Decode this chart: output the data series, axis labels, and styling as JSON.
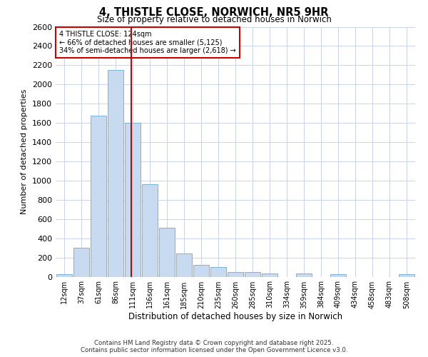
{
  "title": "4, THISTLE CLOSE, NORWICH, NR5 9HR",
  "subtitle": "Size of property relative to detached houses in Norwich",
  "xlabel": "Distribution of detached houses by size in Norwich",
  "ylabel": "Number of detached properties",
  "footer_line1": "Contains HM Land Registry data © Crown copyright and database right 2025.",
  "footer_line2": "Contains public sector information licensed under the Open Government Licence v3.0.",
  "annotation_line1": "4 THISTLE CLOSE: 124sqm",
  "annotation_line2": "← 66% of detached houses are smaller (5,125)",
  "annotation_line3": "34% of semi-detached houses are larger (2,618) →",
  "vline_index": 4.43,
  "categories": [
    "12sqm",
    "37sqm",
    "61sqm",
    "86sqm",
    "111sqm",
    "136sqm",
    "161sqm",
    "185sqm",
    "210sqm",
    "235sqm",
    "260sqm",
    "285sqm",
    "310sqm",
    "334sqm",
    "359sqm",
    "384sqm",
    "409sqm",
    "434sqm",
    "458sqm",
    "483sqm",
    "508sqm"
  ],
  "values": [
    25,
    300,
    1675,
    2150,
    1600,
    960,
    510,
    245,
    120,
    100,
    50,
    50,
    30,
    0,
    30,
    0,
    25,
    0,
    0,
    0,
    25
  ],
  "bar_color": "#c8daf0",
  "bar_edge_color": "#6aaad4",
  "vline_color": "#cc0000",
  "annotation_box_edge_color": "#cc0000",
  "background_color": "#ffffff",
  "grid_color": "#c8d3e8",
  "ylim": [
    0,
    2600
  ],
  "yticks": [
    0,
    200,
    400,
    600,
    800,
    1000,
    1200,
    1400,
    1600,
    1800,
    2000,
    2200,
    2400,
    2600
  ]
}
